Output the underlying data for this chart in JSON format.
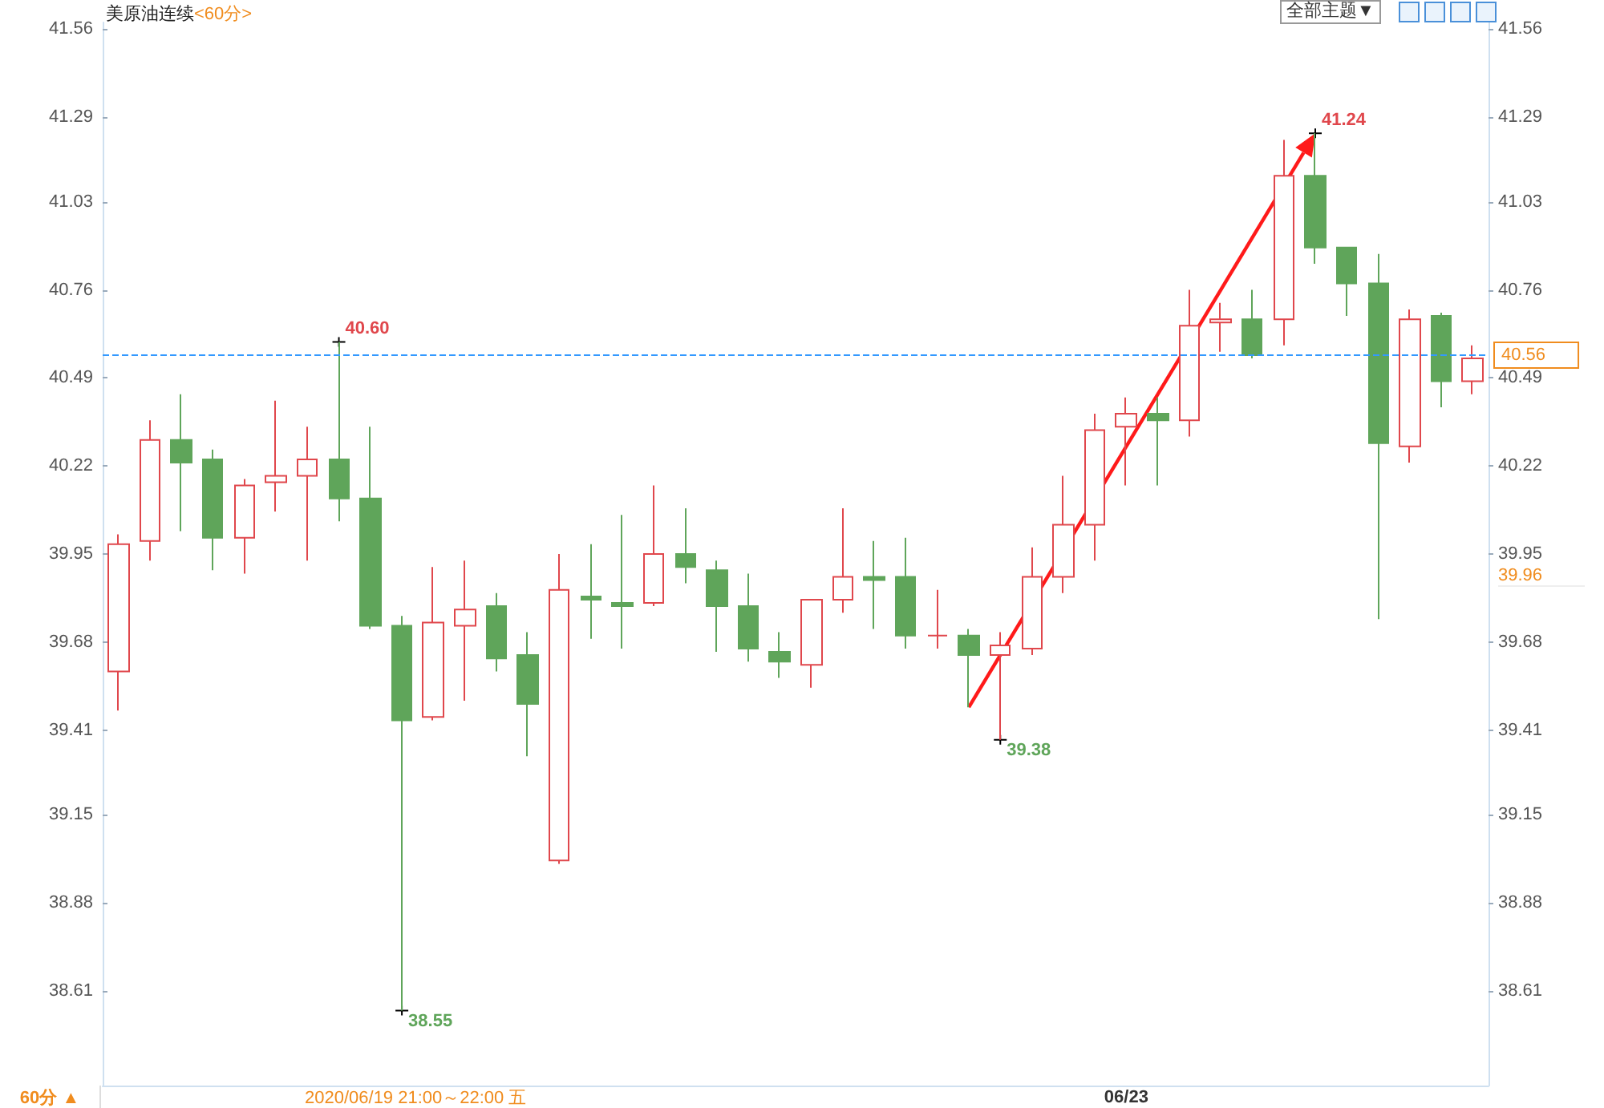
{
  "chart_data": {
    "type": "candlestick",
    "title": "美原油连续",
    "subtitle": "<60分>",
    "categories": [
      null,
      null,
      null,
      null,
      null,
      null,
      null,
      null,
      null,
      null,
      null,
      null,
      null,
      null,
      null,
      null,
      null,
      null,
      null,
      null,
      null,
      null,
      null,
      null,
      null,
      null,
      null,
      null,
      null,
      null,
      null,
      null,
      "06/23",
      null,
      null,
      null,
      null,
      null,
      null,
      null,
      null,
      null,
      null,
      null
    ],
    "ohlc": [
      [
        39.59,
        40.01,
        39.47,
        39.98
      ],
      [
        39.99,
        40.36,
        39.93,
        40.3
      ],
      [
        40.3,
        40.44,
        40.02,
        40.23
      ],
      [
        40.24,
        40.27,
        39.9,
        40.0
      ],
      [
        40.0,
        40.18,
        39.89,
        40.16
      ],
      [
        40.17,
        40.42,
        40.08,
        40.19
      ],
      [
        40.19,
        40.34,
        39.93,
        40.24
      ],
      [
        40.24,
        40.6,
        40.05,
        40.12
      ],
      [
        40.12,
        40.34,
        39.72,
        39.73
      ],
      [
        39.73,
        39.76,
        38.55,
        39.44
      ],
      [
        39.45,
        39.91,
        39.44,
        39.74
      ],
      [
        39.73,
        39.93,
        39.5,
        39.78
      ],
      [
        39.79,
        39.83,
        39.59,
        39.63
      ],
      [
        39.64,
        39.71,
        39.33,
        39.49
      ],
      [
        39.01,
        39.95,
        39.0,
        39.84
      ],
      [
        39.82,
        39.98,
        39.69,
        39.81
      ],
      [
        39.8,
        40.07,
        39.66,
        39.79
      ],
      [
        39.8,
        40.16,
        39.79,
        39.95
      ],
      [
        39.95,
        40.09,
        39.86,
        39.91
      ],
      [
        39.9,
        39.93,
        39.65,
        39.79
      ],
      [
        39.79,
        39.89,
        39.62,
        39.66
      ],
      [
        39.65,
        39.71,
        39.57,
        39.62
      ],
      [
        39.61,
        39.81,
        39.54,
        39.81
      ],
      [
        39.81,
        40.09,
        39.77,
        39.88
      ],
      [
        39.88,
        39.99,
        39.72,
        39.87
      ],
      [
        39.88,
        40.0,
        39.66,
        39.7
      ],
      [
        39.7,
        39.84,
        39.66,
        39.7
      ],
      [
        39.7,
        39.72,
        39.48,
        39.64
      ],
      [
        39.64,
        39.71,
        39.38,
        39.67
      ],
      [
        39.66,
        39.97,
        39.64,
        39.88
      ],
      [
        39.88,
        40.19,
        39.83,
        40.04
      ],
      [
        40.04,
        40.38,
        39.93,
        40.33
      ],
      [
        40.34,
        40.43,
        40.16,
        40.38
      ],
      [
        40.38,
        40.43,
        40.16,
        40.36
      ],
      [
        40.36,
        40.76,
        40.31,
        40.65
      ],
      [
        40.66,
        40.72,
        40.57,
        40.67
      ],
      [
        40.67,
        40.76,
        40.55,
        40.56
      ],
      [
        40.67,
        41.22,
        40.59,
        41.11
      ],
      [
        41.11,
        41.24,
        40.84,
        40.89
      ],
      [
        40.89,
        40.89,
        40.68,
        40.78
      ],
      [
        40.78,
        40.87,
        39.75,
        40.29
      ],
      [
        40.28,
        40.7,
        40.23,
        40.67
      ],
      [
        40.68,
        40.69,
        40.4,
        40.48
      ],
      [
        40.48,
        40.59,
        40.44,
        40.55
      ]
    ],
    "colors": [
      "#e0474c",
      "#e0474c",
      "#5fa55a",
      "#5fa55a",
      "#e0474c",
      "#e0474c",
      "#e0474c",
      "#5fa55a",
      "#5fa55a",
      "#5fa55a",
      "#e0474c",
      "#e0474c",
      "#5fa55a",
      "#5fa55a",
      "#e0474c",
      "#5fa55a",
      "#5fa55a",
      "#e0474c",
      "#5fa55a",
      "#5fa55a",
      "#5fa55a",
      "#5fa55a",
      "#e0474c",
      "#e0474c",
      "#5fa55a",
      "#5fa55a",
      "#e0474c",
      "#5fa55a",
      "#e0474c",
      "#e0474c",
      "#e0474c",
      "#e0474c",
      "#e0474c",
      "#5fa55a",
      "#e0474c",
      "#e0474c",
      "#5fa55a",
      "#e0474c",
      "#5fa55a",
      "#5fa55a",
      "#5fa55a",
      "#e0474c",
      "#5fa55a",
      "#e0474c"
    ],
    "ylim": [
      38.32,
      41.58
    ],
    "yticks": [
      38.61,
      38.88,
      39.15,
      39.41,
      39.68,
      39.95,
      40.22,
      40.49,
      40.76,
      41.03,
      41.29,
      41.56
    ],
    "y2lim": [
      38.32,
      41.58
    ],
    "y2ticks": [
      38.61,
      38.88,
      39.15,
      39.41,
      39.68,
      39.95,
      40.22,
      40.49,
      40.76,
      41.03,
      41.29,
      41.56
    ],
    "ref_lines": [
      {
        "axis": "y",
        "value": 40.56,
        "label": "40.56",
        "color": "#3399ff",
        "line_style": "dashed"
      }
    ],
    "annotations": [
      "40.60",
      "41.24",
      "39.38",
      "38.55",
      "39.96",
      "60分 ▲",
      "2020/06/19 21:00～22:00 五",
      "全部主题▼"
    ]
  }
}
